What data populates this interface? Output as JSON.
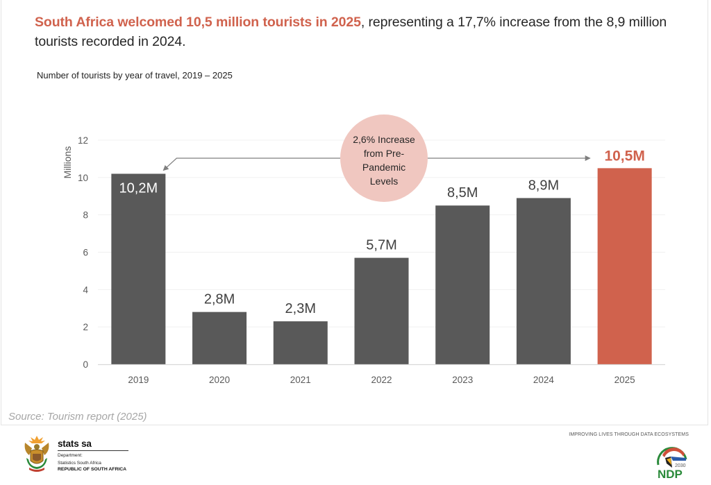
{
  "headline": {
    "highlight": "South Africa welcomed 10,5 million tourists in 2025",
    "rest": ", representing a 17,7% increase from the 8,9 million tourists recorded in 2024."
  },
  "subtitle": "Number of tourists by year of travel, 2019 – 2025",
  "source": "Source: Tourism report (2025)",
  "colors": {
    "bar": "#595959",
    "highlight_bar": "#d0624d",
    "callout_fill": "#f0c7c0",
    "grid": "#f0f0f0",
    "axis": "#d9d9d9"
  },
  "chart_data": {
    "type": "bar",
    "title": "Number of tourists by year of travel, 2019 – 2025",
    "xlabel": "",
    "ylabel": "Millions",
    "ylim": [
      0,
      12
    ],
    "yticks": [
      0,
      2,
      4,
      6,
      8,
      10,
      12
    ],
    "grid": true,
    "categories": [
      "2019",
      "2020",
      "2021",
      "2022",
      "2023",
      "2024",
      "2025"
    ],
    "values": [
      10.2,
      2.8,
      2.3,
      5.7,
      8.5,
      8.9,
      10.5
    ],
    "data_labels": [
      "10,2M",
      "2,8M",
      "2,3M",
      "5,7M",
      "8,5M",
      "8,9M",
      "10,5M"
    ],
    "highlight_index": 6,
    "annotation": {
      "lines": [
        "2,6% Increase",
        "from Pre-",
        "Pandemic",
        "Levels"
      ],
      "from_category": "2019",
      "to_category": "2025"
    }
  },
  "footer": {
    "brand_name": "stats sa",
    "department": "Department:",
    "department_name": "Statistics South Africa",
    "republic": "REPUBLIC OF SOUTH AFRICA",
    "tagline": "IMPROVING LIVES THROUGH DATA ECOSYSTEMS",
    "ndp_logo_text": "NDP",
    "ndp_year": "2030"
  }
}
